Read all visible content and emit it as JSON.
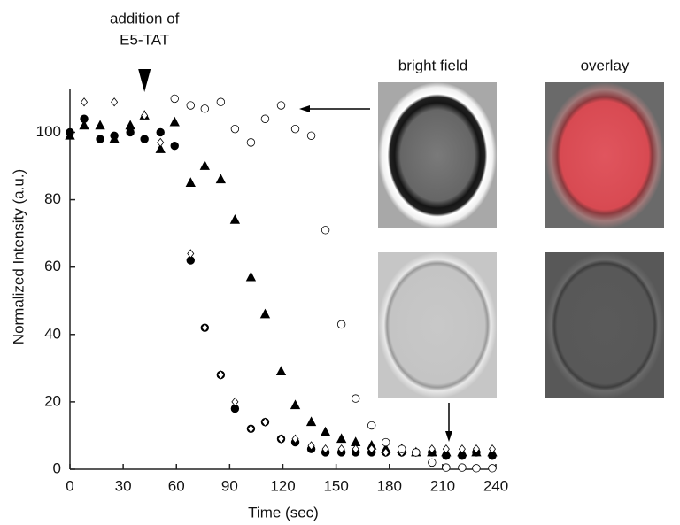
{
  "chart_data": {
    "type": "scatter",
    "annotation_lines": [
      "addition of",
      "E5-TAT"
    ],
    "annotation_x": 42,
    "xlabel": "Time (sec)",
    "ylabel": "Normalized  Intensity (a.u.)",
    "xlim": [
      0,
      240
    ],
    "xticks": [
      0,
      30,
      60,
      90,
      120,
      150,
      180,
      210,
      240
    ],
    "ylim": [
      0,
      113
    ],
    "yticks": [
      0,
      20,
      40,
      60,
      80,
      100
    ],
    "series": [
      {
        "marker": "circle",
        "color": "#000000",
        "x": [
          0,
          8,
          17,
          25,
          34,
          42,
          51,
          59,
          68,
          76,
          85,
          93,
          102,
          110,
          119,
          127,
          136,
          144,
          153,
          161,
          170,
          178,
          187,
          195,
          204,
          212,
          221,
          229,
          238
        ],
        "values": [
          100,
          104,
          98,
          99,
          100,
          98,
          100,
          96,
          62,
          42,
          28,
          18,
          12,
          14,
          9,
          8,
          6,
          5,
          5,
          5,
          5,
          5,
          5,
          5,
          5,
          4,
          4,
          5,
          4
        ]
      },
      {
        "marker": "triangle",
        "color": "#000000",
        "x": [
          0,
          8,
          17,
          25,
          34,
          42,
          51,
          59,
          68,
          76,
          85,
          93,
          102,
          110,
          119,
          127,
          136,
          144,
          153,
          161,
          170,
          178,
          187,
          195,
          204,
          212,
          221,
          229,
          238
        ],
        "values": [
          99,
          102,
          102,
          98,
          102,
          105,
          95,
          103,
          85,
          90,
          86,
          74,
          57,
          46,
          29,
          19,
          14,
          11,
          9,
          8,
          7,
          6,
          6,
          5,
          5,
          5,
          5,
          5,
          5
        ]
      },
      {
        "marker": "diamond",
        "color": "#ffffff",
        "x": [
          8,
          25,
          42,
          51,
          68,
          76,
          85,
          93,
          102,
          110,
          119,
          127,
          136,
          144,
          153,
          161,
          170,
          178,
          187,
          195,
          204,
          212,
          221,
          229,
          238
        ],
        "values": [
          109,
          109,
          105,
          97,
          64,
          42,
          28,
          20,
          12,
          14,
          9,
          9,
          7,
          6,
          6,
          6,
          6,
          5,
          5,
          5,
          6,
          6,
          6,
          6,
          6
        ]
      },
      {
        "marker": "circle",
        "color": "#ffffff",
        "x": [
          59,
          68,
          76,
          85,
          93,
          102,
          110,
          119,
          127,
          136,
          144,
          153,
          161,
          170,
          178,
          187,
          195,
          204,
          212,
          221,
          229,
          238
        ],
        "values": [
          110,
          108,
          107,
          109,
          101,
          97,
          104,
          108,
          101,
          99,
          71,
          43,
          21,
          13,
          8,
          6,
          5,
          2,
          0.5,
          0.5,
          0.3,
          0.3
        ]
      }
    ]
  },
  "panels": {
    "top_labels": [
      "bright field",
      "overlay"
    ]
  }
}
